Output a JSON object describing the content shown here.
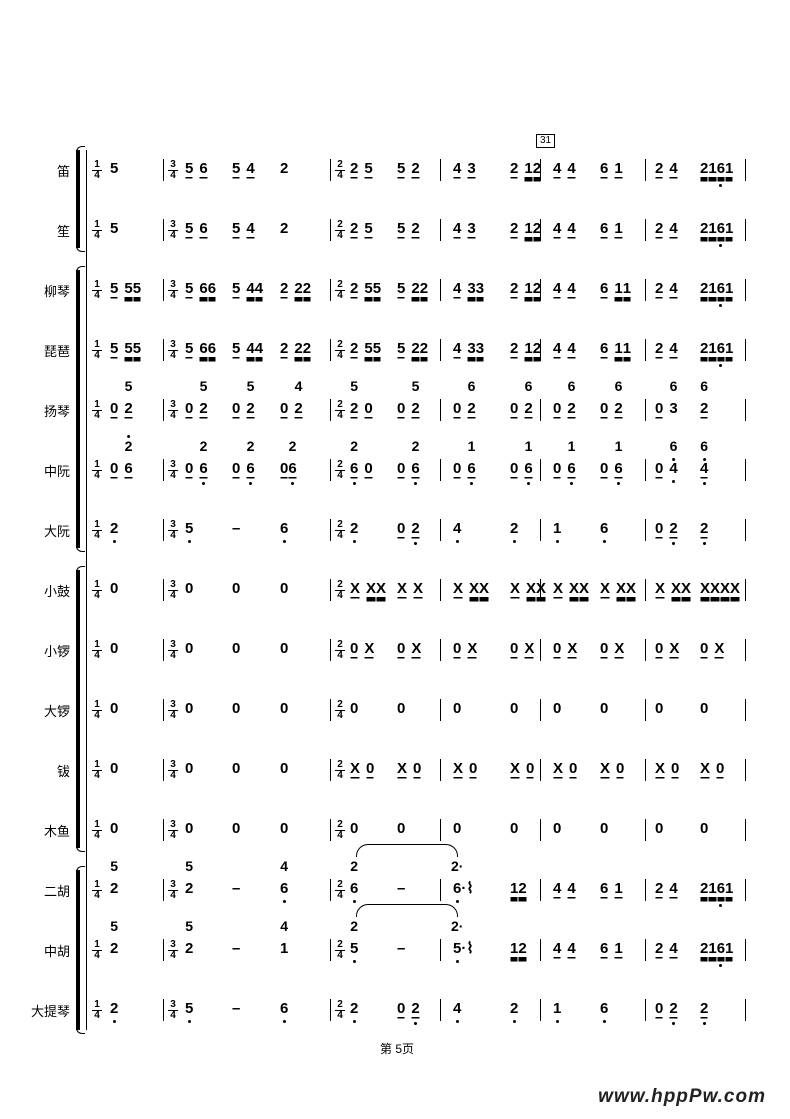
{
  "rehearsal_mark": "31",
  "footer": "第 5页",
  "watermark": "www.hppPw.com",
  "time_signatures": [
    [
      "1",
      "4"
    ],
    [
      "3",
      "4"
    ],
    [
      "2",
      "4"
    ]
  ],
  "rows": [
    {
      "label": "笛",
      "measures": [
        [
          "5"
        ],
        [
          "[5 6]",
          "[5 4]",
          "2"
        ],
        [
          "[2 5]",
          "[5 2]"
        ],
        [
          "[4 3]",
          "[2 [12]]"
        ],
        [
          "[4 4]",
          "[6 1]"
        ],
        [
          "[2 4]",
          "[[216,1]]"
        ]
      ]
    },
    {
      "label": "笙",
      "measures": [
        [
          "5"
        ],
        [
          "[5 6]",
          "[5 4]",
          "2"
        ],
        [
          "[2 5]",
          "[5 2]"
        ],
        [
          "[4 3]",
          "[2 [12]]"
        ],
        [
          "[4 4]",
          "[6 1]"
        ],
        [
          "[2 4]",
          "[[216,1]]"
        ]
      ]
    },
    {
      "label": "柳琴",
      "measures": [
        [
          "[5 [55]]"
        ],
        [
          "[5 [66]]",
          "[5 [44]]",
          "[2 [22]]"
        ],
        [
          "[2 [55]]",
          "[5 [22]]"
        ],
        [
          "[4 [33]]",
          "[2 [12]]"
        ],
        [
          "[4 4]",
          "[6 [11]]"
        ],
        [
          "[2 4]",
          "[[216,1]]"
        ]
      ]
    },
    {
      "label": "琵琶",
      "measures": [
        [
          "[5 [55]]"
        ],
        [
          "[5 [66]]",
          "[5 [44]]",
          "[2 [22]]"
        ],
        [
          "[2 [55]]",
          "[5 [22]]"
        ],
        [
          "[4 [33]]",
          "[2 [12]]"
        ],
        [
          "[4 4]",
          "[6 [11]]"
        ],
        [
          "[2 4]",
          "[[216,1]]"
        ]
      ]
    },
    {
      "label": "扬琴",
      "measures": [
        [
          "[0 2{5}]"
        ],
        [
          "[0 2{5}]",
          "[0 2{5}]",
          "[0 2{4}]"
        ],
        [
          "[2{5} 0]",
          "[0 2{5}]"
        ],
        [
          "[0 2{6}]",
          "[0 2{6}]"
        ],
        [
          "[0 2{6}]",
          "[0 2{6}]"
        ],
        [
          "[0] 3{6}",
          "[2{6}]"
        ]
      ]
    },
    {
      "label": "中阮",
      "measures": [
        [
          "[0 6{2'}]"
        ],
        [
          "[0 6,{2}]",
          "[0 6,{2}]",
          "[06,{2}]"
        ],
        [
          "[6,{2} 0]",
          "[0 6,{2}]"
        ],
        [
          "[0 6,{1}]",
          "[0 6,{1}]"
        ],
        [
          "[0 6,{1}]",
          "[0 6,{1}]"
        ],
        [
          "[0] 4,{6,}",
          "[4,{6,}]"
        ]
      ]
    },
    {
      "label": "大阮",
      "measures": [
        [
          "2,"
        ],
        [
          "5,",
          "–",
          "6,"
        ],
        [
          "2,",
          "[0 2,]"
        ],
        [
          "4,",
          "2,"
        ],
        [
          "1,",
          "6,"
        ],
        [
          "[0 2,]",
          "[2,]"
        ]
      ]
    },
    {
      "label": "小鼓",
      "measures": [
        [
          "0"
        ],
        [
          "0",
          "0",
          "0"
        ],
        [
          "[X [XX]]",
          "[X X]"
        ],
        [
          "[X [XX]]",
          "[X [XX]]"
        ],
        [
          "[X [XX]]",
          "[X [XX]]"
        ],
        [
          "[X [XX]]",
          "[[XXXX]]"
        ]
      ]
    },
    {
      "label": "小锣",
      "measures": [
        [
          "0"
        ],
        [
          "0",
          "0",
          "0"
        ],
        [
          "[0 X]",
          "[0 X]"
        ],
        [
          "[0 X]",
          "[0 X]"
        ],
        [
          "[0 X]",
          "[0 X]"
        ],
        [
          "[0 X]",
          "[0 X]"
        ]
      ]
    },
    {
      "label": "大锣",
      "measures": [
        [
          "0"
        ],
        [
          "0",
          "0",
          "0"
        ],
        [
          "0",
          "0"
        ],
        [
          "0",
          "0"
        ],
        [
          "0",
          "0"
        ],
        [
          "0",
          "0"
        ]
      ]
    },
    {
      "label": "钹",
      "measures": [
        [
          "0"
        ],
        [
          "0",
          "0",
          "0"
        ],
        [
          "[X 0]",
          "[X 0]"
        ],
        [
          "[X 0]",
          "[X 0]"
        ],
        [
          "[X 0]",
          "[X 0]"
        ],
        [
          "[X 0]",
          "[X 0]"
        ]
      ]
    },
    {
      "label": "木鱼",
      "measures": [
        [
          "0"
        ],
        [
          "0",
          "0",
          "0"
        ],
        [
          "0",
          "0"
        ],
        [
          "0",
          "0"
        ],
        [
          "0",
          "0"
        ],
        [
          "0",
          "0"
        ]
      ]
    },
    {
      "label": "二胡",
      "tie": true,
      "measures": [
        [
          "2{5}"
        ],
        [
          "2{5}",
          "–",
          "6,{4}"
        ],
        [
          "6,{2}",
          "–"
        ],
        [
          "6,{2·}·⌇",
          "[[12]]"
        ],
        [
          "[4 4]",
          "[6 1]"
        ],
        [
          "[2 4]",
          "[[216,1]]"
        ]
      ]
    },
    {
      "label": "中胡",
      "tie": true,
      "measures": [
        [
          "2{5}"
        ],
        [
          "2{5}",
          "–",
          "1{4}"
        ],
        [
          "5,{2}",
          "–"
        ],
        [
          "5,{2·}·⌇",
          "[[12]]"
        ],
        [
          "[4 4]",
          "[6 1]"
        ],
        [
          "[2 4]",
          "[[216,1]]"
        ]
      ]
    },
    {
      "label": "大提琴",
      "measures": [
        [
          "2,"
        ],
        [
          "5,",
          "–",
          "6,"
        ],
        [
          "2,",
          "[0 2,]"
        ],
        [
          "4,",
          "2,"
        ],
        [
          "1,",
          "6,"
        ],
        [
          "[0 2,]",
          "[2,]"
        ]
      ]
    }
  ]
}
